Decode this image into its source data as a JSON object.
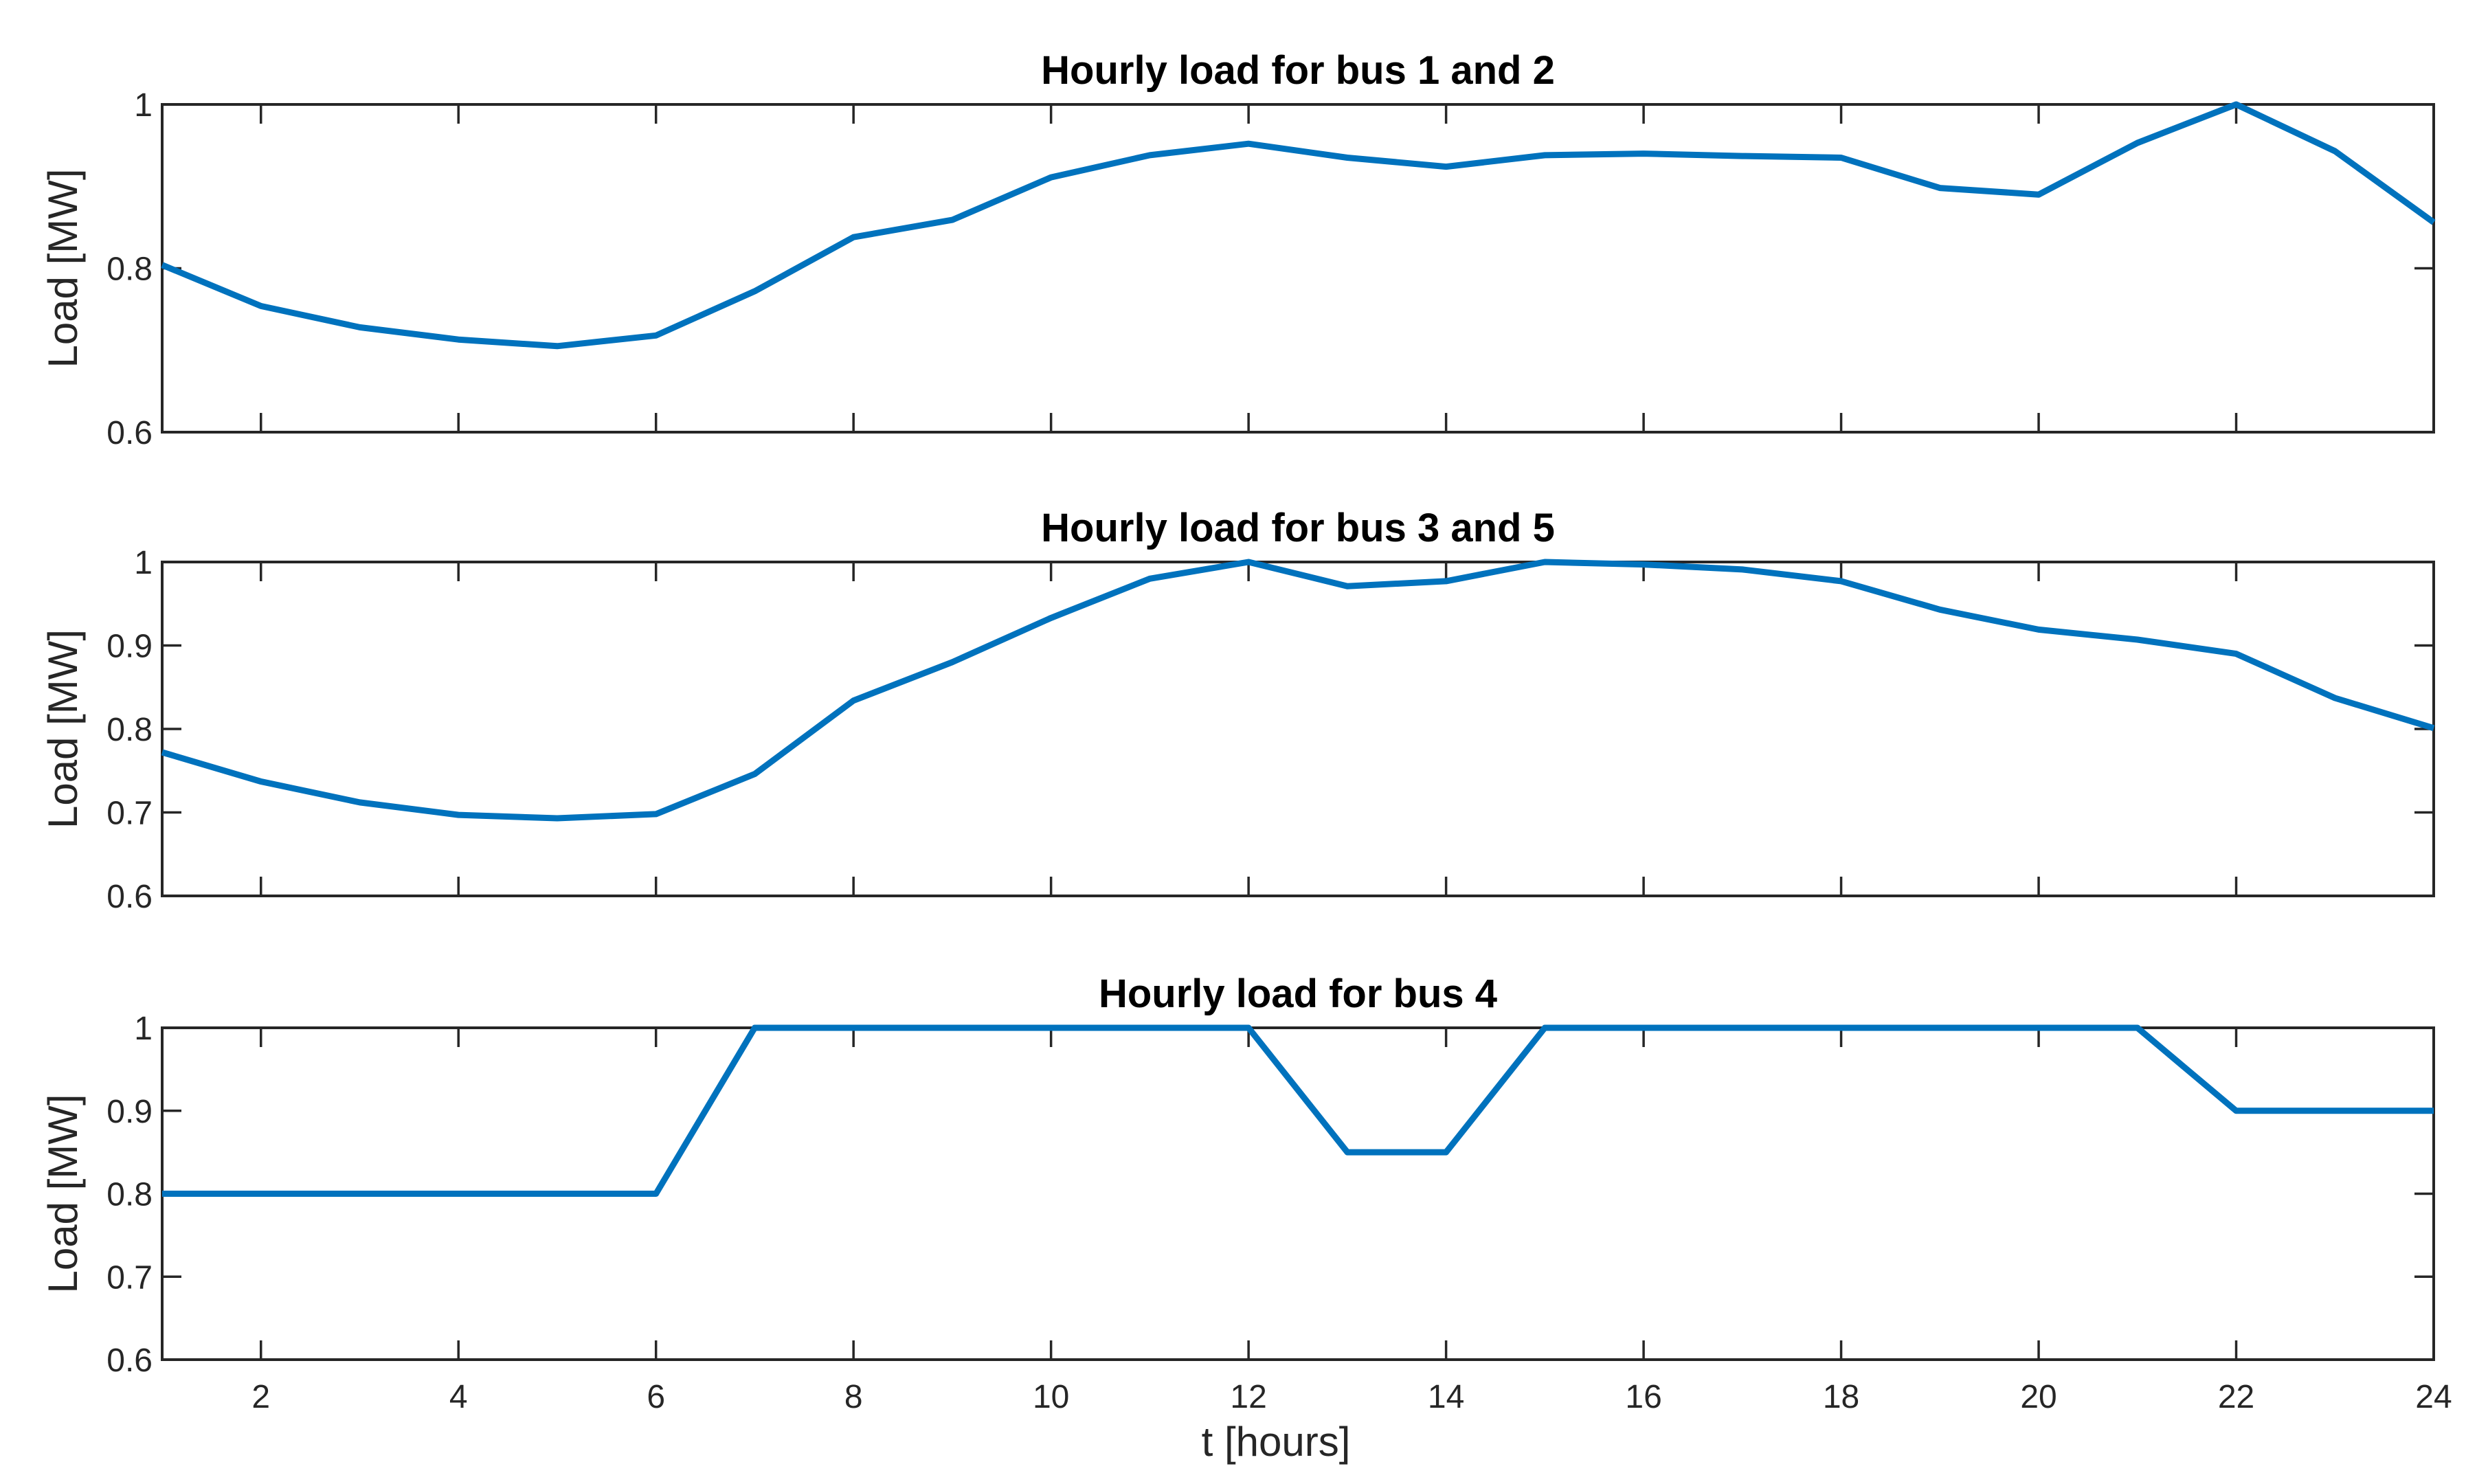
{
  "chart_data": [
    {
      "type": "line",
      "title": "Hourly load for bus 1 and 2",
      "ylabel": "Load [MW]",
      "xlabel": "",
      "xlim": [
        1,
        24
      ],
      "ylim": [
        0.6,
        1.0
      ],
      "x_ticks": [
        2,
        4,
        6,
        8,
        10,
        12,
        14,
        16,
        18,
        20,
        22,
        24
      ],
      "y_ticks": [
        0.6,
        0.8,
        1
      ],
      "y_tick_labels": [
        "0.6",
        "0.8",
        "1"
      ],
      "show_x_tick_labels": false,
      "grid": false,
      "x": [
        1,
        2,
        3,
        4,
        5,
        6,
        7,
        8,
        9,
        10,
        11,
        12,
        13,
        14,
        15,
        16,
        17,
        18,
        19,
        20,
        21,
        22,
        23,
        24
      ],
      "series": [
        {
          "color": "#0072bd",
          "values": [
            0.804,
            0.754,
            0.728,
            0.713,
            0.705,
            0.718,
            0.772,
            0.838,
            0.859,
            0.911,
            0.938,
            0.952,
            0.935,
            0.924,
            0.938,
            0.94,
            0.937,
            0.935,
            0.898,
            0.89,
            0.953,
            1.0,
            0.943,
            0.856
          ]
        }
      ]
    },
    {
      "type": "line",
      "title": "Hourly load for bus 3 and 5",
      "ylabel": "Load [MW]",
      "xlabel": "",
      "xlim": [
        1,
        24
      ],
      "ylim": [
        0.6,
        1.0
      ],
      "x_ticks": [
        2,
        4,
        6,
        8,
        10,
        12,
        14,
        16,
        18,
        20,
        22,
        24
      ],
      "y_ticks": [
        0.6,
        0.7,
        0.8,
        0.9,
        1
      ],
      "y_tick_labels": [
        "0.6",
        "0.7",
        "0.8",
        "0.9",
        "1"
      ],
      "show_x_tick_labels": false,
      "grid": false,
      "x": [
        1,
        2,
        3,
        4,
        5,
        6,
        7,
        8,
        9,
        10,
        11,
        12,
        13,
        14,
        15,
        16,
        17,
        18,
        19,
        20,
        21,
        22,
        23,
        24
      ],
      "series": [
        {
          "color": "#0072bd",
          "values": [
            0.772,
            0.737,
            0.712,
            0.697,
            0.693,
            0.698,
            0.746,
            0.834,
            0.88,
            0.933,
            0.98,
            1.0,
            0.971,
            0.977,
            1.0,
            0.997,
            0.991,
            0.977,
            0.943,
            0.919,
            0.907,
            0.89,
            0.837,
            0.801
          ]
        }
      ]
    },
    {
      "type": "line",
      "title": "Hourly load for bus 4",
      "ylabel": "Load [MW]",
      "xlabel": "t [hours]",
      "xlim": [
        1,
        24
      ],
      "ylim": [
        0.6,
        1.0
      ],
      "x_ticks": [
        2,
        4,
        6,
        8,
        10,
        12,
        14,
        16,
        18,
        20,
        22,
        24
      ],
      "x_tick_labels": [
        "2",
        "4",
        "6",
        "8",
        "10",
        "12",
        "14",
        "16",
        "18",
        "20",
        "22",
        "24"
      ],
      "y_ticks": [
        0.6,
        0.7,
        0.8,
        0.9,
        1
      ],
      "y_tick_labels": [
        "0.6",
        "0.7",
        "0.8",
        "0.9",
        "1"
      ],
      "show_x_tick_labels": true,
      "grid": false,
      "x": [
        1,
        2,
        3,
        4,
        5,
        6,
        7,
        8,
        9,
        10,
        11,
        12,
        13,
        14,
        15,
        16,
        17,
        18,
        19,
        20,
        21,
        22,
        23,
        24
      ],
      "series": [
        {
          "color": "#0072bd",
          "values": [
            0.8,
            0.8,
            0.8,
            0.8,
            0.8,
            0.8,
            1,
            1,
            1,
            1,
            1,
            1,
            0.85,
            0.85,
            1,
            1,
            1,
            1,
            1,
            1,
            1,
            0.9,
            0.9,
            0.9
          ]
        }
      ]
    }
  ]
}
